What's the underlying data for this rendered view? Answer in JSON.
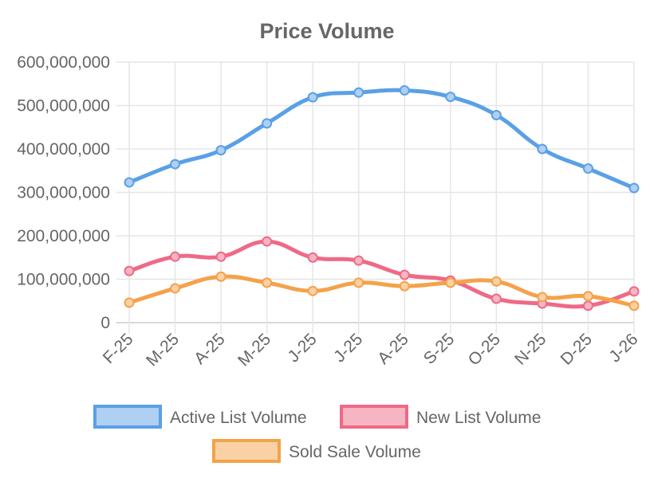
{
  "chart_data": {
    "type": "line",
    "title": "Price Volume",
    "xlabel": "",
    "ylabel": "",
    "categories": [
      "F-25",
      "M-25",
      "A-25",
      "M-25",
      "J-25",
      "J-25",
      "A-25",
      "S-25",
      "O-25",
      "N-25",
      "D-25",
      "J-26"
    ],
    "ylim": [
      0,
      600000000
    ],
    "yticks": [
      0,
      100000000,
      200000000,
      300000000,
      400000000,
      500000000,
      600000000
    ],
    "ytick_labels": [
      "0",
      "100,000,000",
      "200,000,000",
      "300,000,000",
      "400,000,000",
      "500,000,000",
      "600,000,000"
    ],
    "grid": true,
    "legend_position": "bottom",
    "series": [
      {
        "name": "Active List Volume",
        "color": "#5aa0e6",
        "fill": "#afd0f2",
        "values": [
          323000000,
          365000000,
          397000000,
          459000000,
          519000000,
          530000000,
          535000000,
          520000000,
          478000000,
          400000000,
          355000000,
          310000000
        ]
      },
      {
        "name": "New List Volume",
        "color": "#ee6a86",
        "fill": "#f7b5c3",
        "values": [
          119000000,
          152000000,
          152000000,
          187000000,
          150000000,
          143000000,
          110000000,
          97000000,
          55000000,
          44000000,
          39000000,
          72000000
        ]
      },
      {
        "name": "Sold Sale Volume",
        "color": "#f4a24a",
        "fill": "#f9d1a5",
        "values": [
          46000000,
          79000000,
          106000000,
          92000000,
          73000000,
          92000000,
          84000000,
          92000000,
          95000000,
          59000000,
          61000000,
          39000000
        ]
      }
    ]
  }
}
